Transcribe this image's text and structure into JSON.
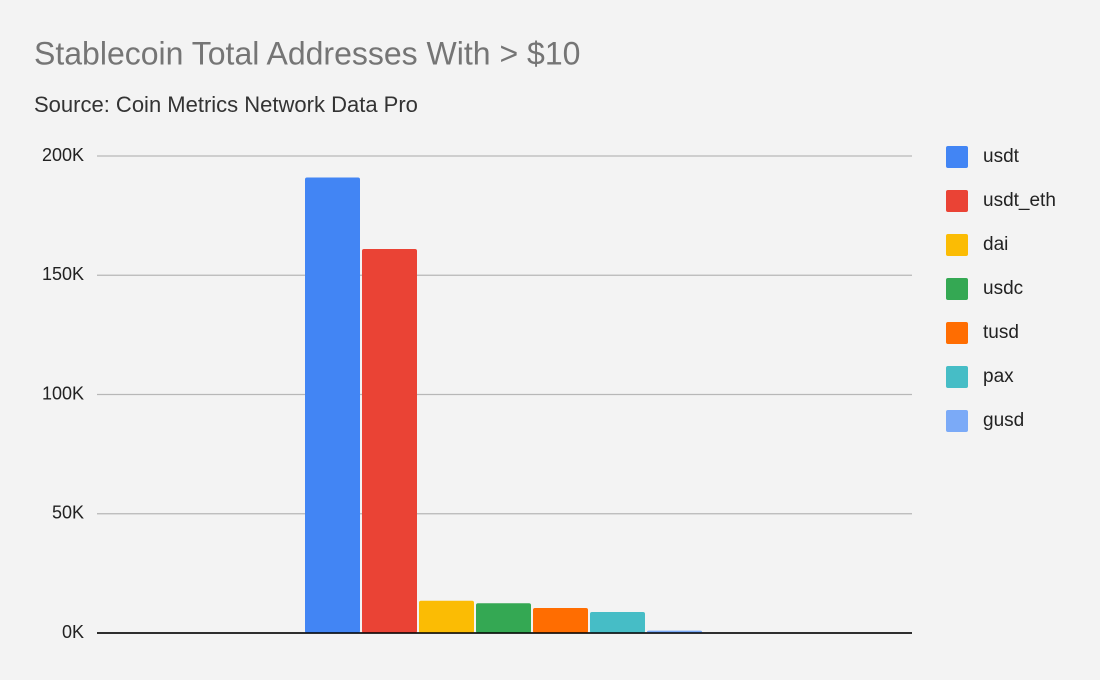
{
  "chart_data": {
    "type": "bar",
    "title": "Stablecoin Total Addresses With > $10",
    "subtitle": "Source: Coin Metrics Network Data Pro",
    "categories": [
      null
    ],
    "series": [
      {
        "name": "usdt",
        "color": "#4285f4",
        "values": [
          191000
        ]
      },
      {
        "name": "usdt_eth",
        "color": "#ea4335",
        "values": [
          161000
        ]
      },
      {
        "name": "dai",
        "color": "#fbbc04",
        "values": [
          13500
        ]
      },
      {
        "name": "usdc",
        "color": "#34a853",
        "values": [
          12500
        ]
      },
      {
        "name": "tusd",
        "color": "#ff6d01",
        "values": [
          10500
        ]
      },
      {
        "name": "pax",
        "color": "#46bdc6",
        "values": [
          8800
        ]
      },
      {
        "name": "gusd",
        "color": "#7baaf7",
        "values": [
          1000
        ]
      }
    ],
    "ylim": [
      0,
      200000
    ],
    "yticks": [
      {
        "value": 0,
        "label": "0K"
      },
      {
        "value": 50000,
        "label": "50K"
      },
      {
        "value": 100000,
        "label": "100K"
      },
      {
        "value": 150000,
        "label": "150K"
      },
      {
        "value": 200000,
        "label": "200K"
      }
    ],
    "grid": true,
    "legend": "right"
  }
}
